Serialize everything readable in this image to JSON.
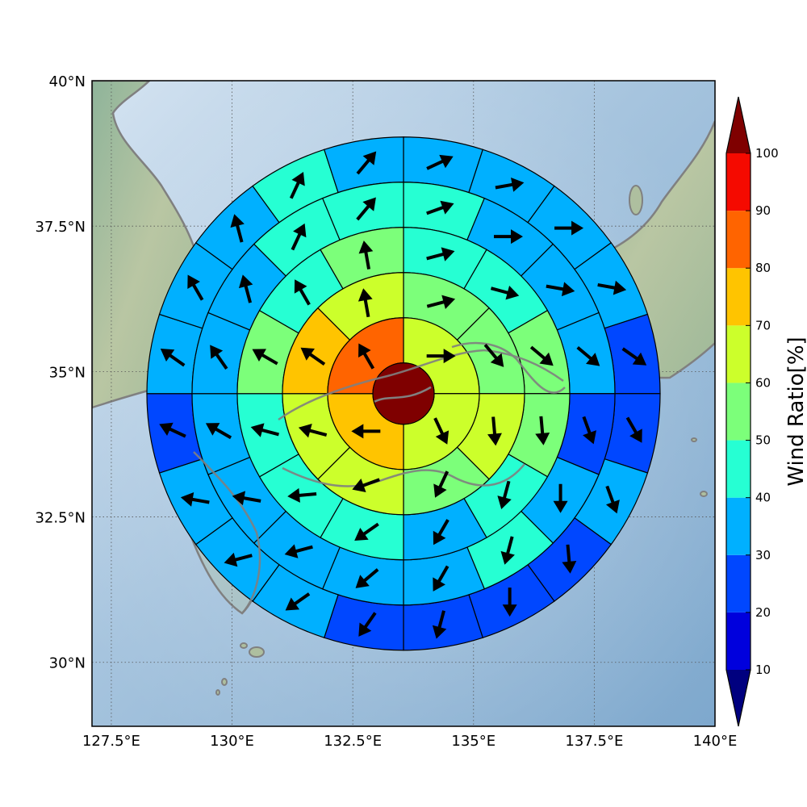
{
  "chart_data": {
    "type": "heatmap",
    "projection": "polar-sector-grid-on-map",
    "x_axis": {
      "ticks": [
        127.5,
        130,
        132.5,
        135,
        137.5,
        140
      ],
      "tick_labels": [
        "127.5°E",
        "130°E",
        "132.5°E",
        "135°E",
        "137.5°E",
        "140°E"
      ],
      "xlim": [
        127.1,
        140
      ]
    },
    "y_axis": {
      "ticks": [
        30,
        32.5,
        35,
        37.5,
        40
      ],
      "tick_labels": [
        "30°N",
        "32.5°N",
        "35°N",
        "37.5°N",
        "40°N"
      ],
      "ylim": [
        28.9,
        40
      ]
    },
    "grid": true,
    "center": {
      "lon": 133.55,
      "lat": 34.62
    },
    "colorbar": {
      "label": "Wind Ratio[%]",
      "min": 10,
      "max": 100,
      "step": 10,
      "ticks": [
        10,
        20,
        30,
        40,
        50,
        60,
        70,
        80,
        90,
        100
      ],
      "colors": [
        "#00007f",
        "#0000dd",
        "#0047ff",
        "#00b0ff",
        "#26ffd3",
        "#7cff7a",
        "#ccff2b",
        "#ffc400",
        "#ff6400",
        "#f50a00",
        "#7f0000"
      ],
      "extend": "both"
    },
    "colormap_legend": [
      {
        "range": "<10",
        "color": "#00007f"
      },
      {
        "range": "10-20",
        "color": "#0000dd"
      },
      {
        "range": "20-30",
        "color": "#0047ff"
      },
      {
        "range": "30-40",
        "color": "#00b0ff"
      },
      {
        "range": "40-50",
        "color": "#26ffd3"
      },
      {
        "range": "50-60",
        "color": "#7cff7a"
      },
      {
        "range": "60-70",
        "color": "#ccff2b"
      },
      {
        "range": "70-80",
        "color": "#ffc400"
      },
      {
        "range": "80-90",
        "color": "#ff6400"
      },
      {
        "range": "90-100",
        "color": "#f50a00"
      },
      {
        "range": ">100",
        "color": "#7f0000"
      }
    ],
    "center_disk": {
      "ratio": 100
    },
    "rings": [
      {
        "ring": 1,
        "sectors": 4,
        "ratios": [
          65,
          65,
          75,
          85
        ],
        "wind_dir_deg": [
          90,
          155,
          270,
          330
        ]
      },
      {
        "ring": 2,
        "sectors": 8,
        "ratios": [
          55,
          55,
          65,
          55,
          65,
          65,
          75,
          65
        ],
        "wind_dir_deg": [
          75,
          140,
          175,
          205,
          250,
          285,
          305,
          350
        ]
      },
      {
        "ring": 3,
        "sectors": 12,
        "ratios": [
          45,
          45,
          55,
          55,
          45,
          35,
          45,
          45,
          45,
          55,
          45,
          55
        ],
        "wind_dir_deg": [
          75,
          105,
          130,
          175,
          195,
          210,
          235,
          265,
          285,
          300,
          330,
          350
        ]
      },
      {
        "ring": 4,
        "sectors": 16,
        "ratios": [
          45,
          35,
          35,
          35,
          25,
          35,
          45,
          35,
          35,
          35,
          35,
          35,
          35,
          35,
          45,
          45
        ],
        "wind_dir_deg": [
          70,
          90,
          100,
          130,
          160,
          180,
          195,
          210,
          230,
          255,
          280,
          300,
          325,
          345,
          25,
          40
        ]
      },
      {
        "ring": 5,
        "sectors": 20,
        "ratios": [
          35,
          35,
          35,
          35,
          25,
          25,
          35,
          25,
          25,
          25,
          25,
          35,
          35,
          35,
          25,
          35,
          35,
          35,
          45,
          35
        ],
        "wind_dir_deg": [
          65,
          80,
          90,
          100,
          125,
          150,
          160,
          175,
          180,
          195,
          215,
          235,
          255,
          280,
          295,
          305,
          330,
          345,
          25,
          40
        ]
      }
    ]
  }
}
